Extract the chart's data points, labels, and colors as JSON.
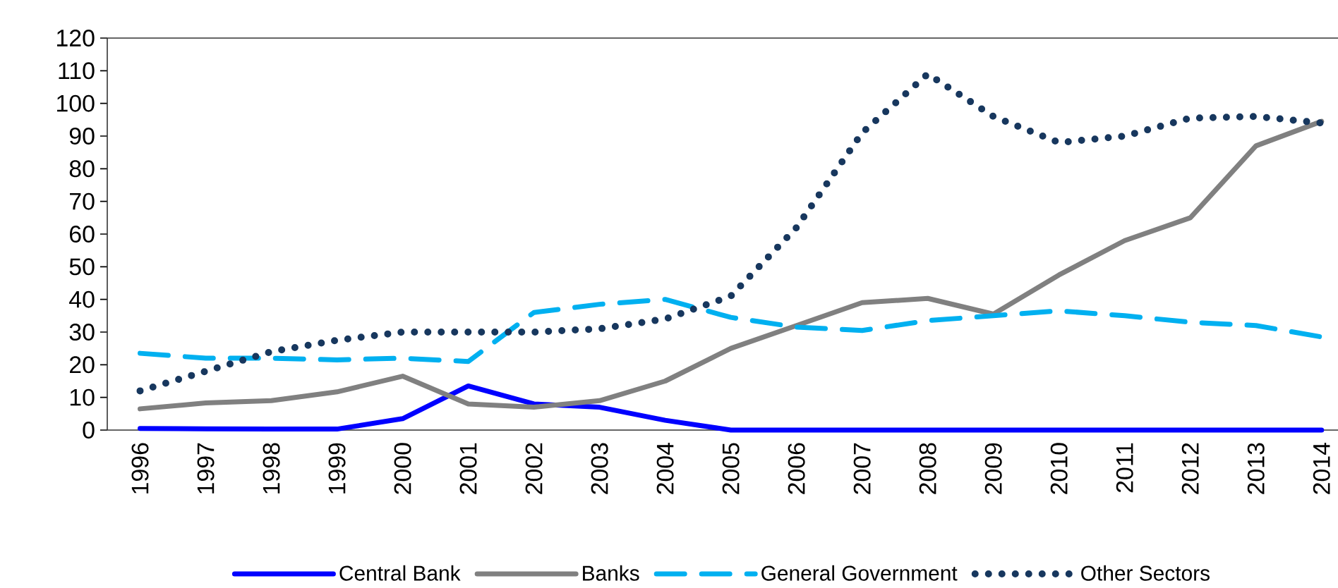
{
  "chart_data": {
    "type": "line",
    "categories": [
      "1996",
      "1997",
      "1998",
      "1999",
      "2000",
      "2001",
      "2002",
      "2003",
      "2004",
      "2005",
      "2006",
      "2007",
      "2008",
      "2009",
      "2010",
      "2011",
      "2012",
      "2013",
      "2014"
    ],
    "series": [
      {
        "name": "Central Bank",
        "color": "#0000ff",
        "line_style": "solid",
        "values": [
          0.5,
          0.4,
          0.3,
          0.3,
          3.5,
          13.5,
          8,
          7,
          3,
          0,
          0,
          0,
          0,
          0,
          0,
          0,
          0,
          0,
          0
        ]
      },
      {
        "name": "Banks",
        "color": "#808080",
        "line_style": "solid",
        "values": [
          6.5,
          8.3,
          9,
          11.7,
          16.5,
          8,
          7,
          9,
          15,
          25,
          32,
          39,
          40.3,
          35.5,
          47.5,
          58,
          65,
          87,
          94.5
        ]
      },
      {
        "name": "General Government",
        "color": "#00b0f0",
        "line_style": "dashed",
        "values": [
          23.5,
          22,
          22,
          21.5,
          22,
          21,
          36,
          38.5,
          40,
          34.5,
          31.5,
          30.5,
          33.5,
          35,
          36.5,
          35,
          33,
          32,
          28.5
        ]
      },
      {
        "name": "Other Sectors",
        "color": "#17375e",
        "line_style": "dotted",
        "values": [
          12,
          18,
          24,
          27.5,
          30,
          30,
          30,
          31,
          34,
          41,
          62,
          91,
          109,
          96,
          88,
          90,
          95.5,
          96,
          94
        ]
      }
    ],
    "ylim": [
      0,
      120
    ],
    "yticks": [
      0,
      10,
      20,
      30,
      40,
      50,
      60,
      70,
      80,
      90,
      100,
      110,
      120
    ],
    "grid": false,
    "legend": "bottom",
    "marker": "none"
  }
}
